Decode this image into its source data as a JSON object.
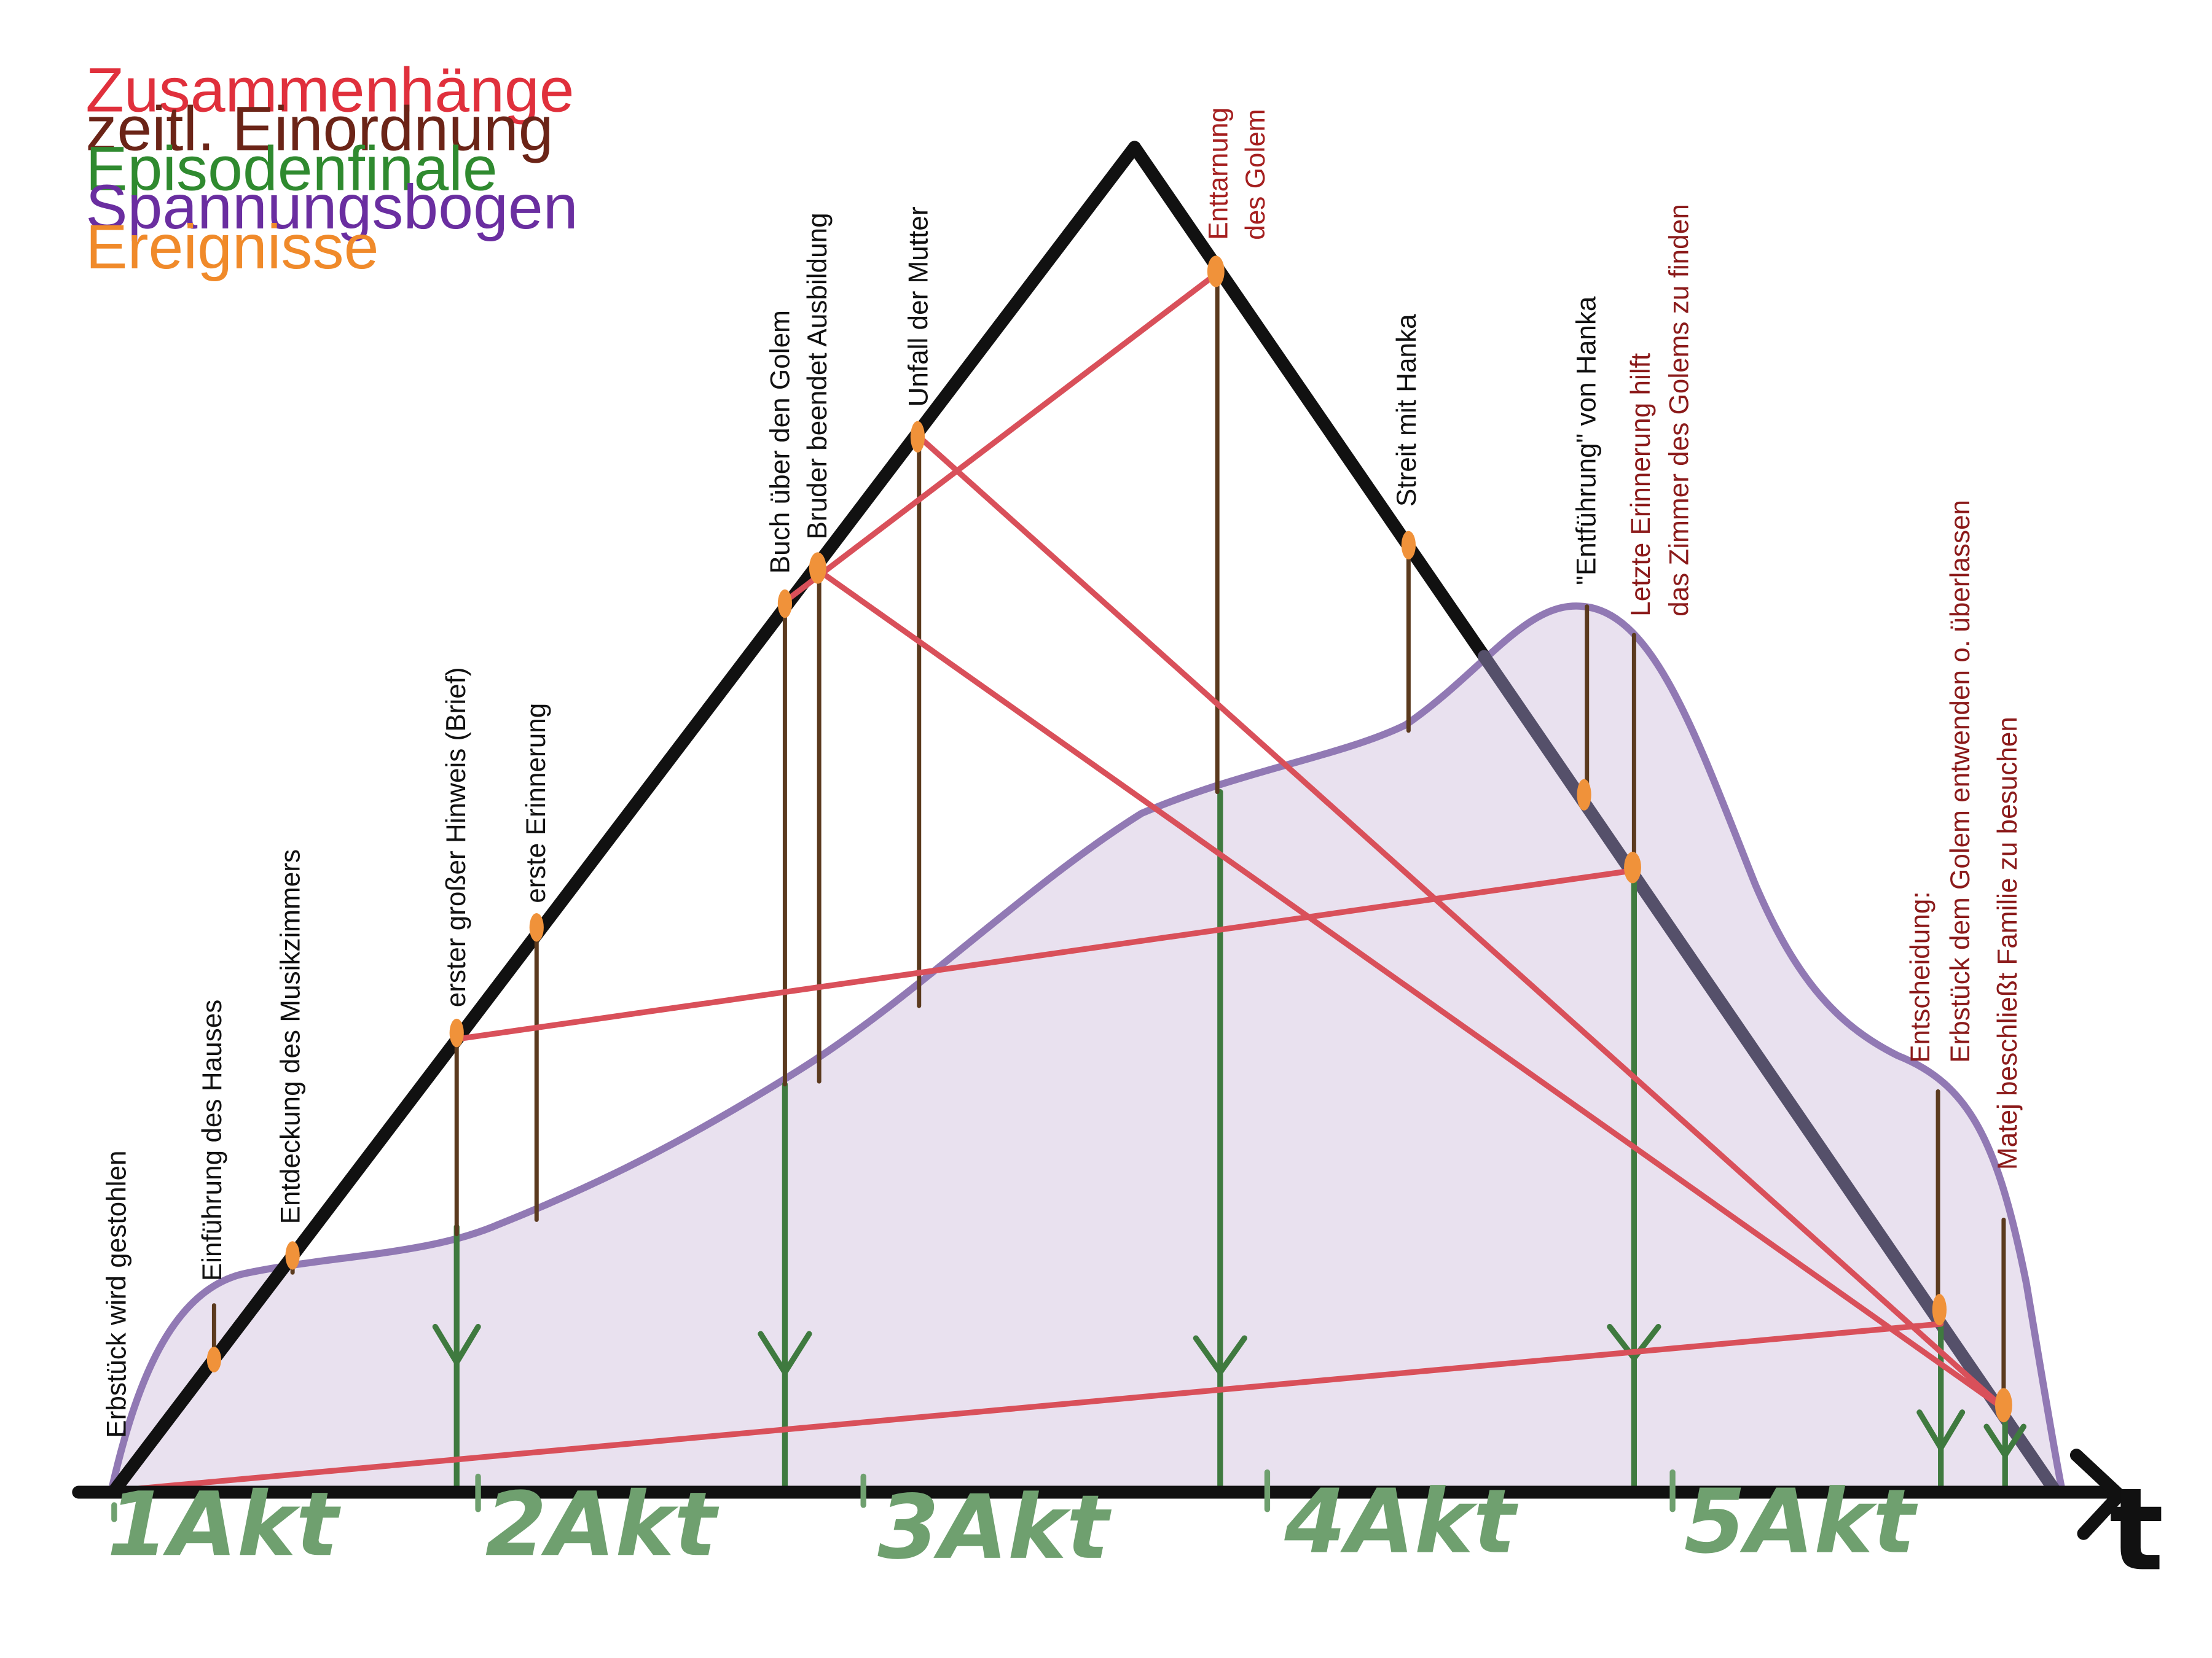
{
  "colors": {
    "zusammenhaenge": "#d9505a",
    "zeitl": "#5b3a1e",
    "episoden": "#3f7a3f",
    "spannung": "#8c72b0",
    "spannung_fill": "#e8e0ef",
    "ereignisse": "#f0923a",
    "triangle": "#111111",
    "event_label_black": "#111111",
    "event_label_red": "#8b1a1a",
    "act": "#6fa06f"
  },
  "legend": [
    {
      "label": "Zusammenhänge",
      "color": "#e0303c"
    },
    {
      "label": "zeitl. Einordnung",
      "color": "#6b2417"
    },
    {
      "label": "Episodenfinale",
      "color": "#2f8a2f"
    },
    {
      "label": "Spannungsbogen",
      "color": "#6a2ea0"
    },
    {
      "label": "Ereignisse",
      "color": "#f08a2a"
    }
  ],
  "events": [
    {
      "id": "erbstueck",
      "label": "Erbstück wird gestohlen",
      "lines": [
        "Erbstück wird gestohlen"
      ],
      "color": "black"
    },
    {
      "id": "haus",
      "label": "Einführung des Hauses",
      "lines": [
        "Einführung des Hauses"
      ],
      "color": "black"
    },
    {
      "id": "musik",
      "label": "Entdeckung des Musikzimmers",
      "lines": [
        "Entdeckung des Musikzimmers"
      ],
      "color": "black"
    },
    {
      "id": "hinweis",
      "label": "erster großer Hinweis (Brief)",
      "lines": [
        "erster großer Hinweis (Brief)"
      ],
      "color": "black"
    },
    {
      "id": "erinnerung",
      "label": "erste Erinnerung",
      "lines": [
        "erste Erinnerung"
      ],
      "color": "black"
    },
    {
      "id": "buch",
      "label": "Buch über den Golem",
      "lines": [
        "Buch über den Golem"
      ],
      "color": "black"
    },
    {
      "id": "bruder",
      "label": "Bruder beendet Ausbildung",
      "lines": [
        "Bruder beendet Ausbildung"
      ],
      "color": "black"
    },
    {
      "id": "unfall",
      "label": "Unfall der Mutter",
      "lines": [
        "Unfall der Mutter"
      ],
      "color": "black"
    },
    {
      "id": "enttarnung",
      "label": "Enttarnung des Golem",
      "lines": [
        "Enttarnung",
        "des Golem"
      ],
      "color": "red"
    },
    {
      "id": "streit",
      "label": "Streit mit Hanka",
      "lines": [
        "Streit mit Hanka"
      ],
      "color": "black"
    },
    {
      "id": "entfuehrung",
      "label": "\"Entführung\" von Hanka",
      "lines": [
        "\"Entführung\" von Hanka"
      ],
      "color": "black"
    },
    {
      "id": "letzte",
      "label": "Letzte Erinnerung hilft das Zimmer des Golems zu finden",
      "lines": [
        "Letzte Erinnerung hilft",
        "das Zimmer des Golems zu finden"
      ],
      "color": "red"
    },
    {
      "id": "entscheidung",
      "label": "Entscheidung: Erbstück dem Golem entwenden o. überlassen",
      "lines": [
        "Entscheidung:",
        "Erbstück dem Golem entwenden o. überlassen"
      ],
      "color": "red"
    },
    {
      "id": "matej",
      "label": "Matej beschließt Familie zu besuchen",
      "lines": [
        "Matej beschließt Familie zu besuchen"
      ],
      "color": "red"
    }
  ],
  "acts": [
    "1Akt",
    "2Akt",
    "3Akt",
    "4Akt",
    "5Akt"
  ],
  "axis": {
    "time_label": "t"
  }
}
